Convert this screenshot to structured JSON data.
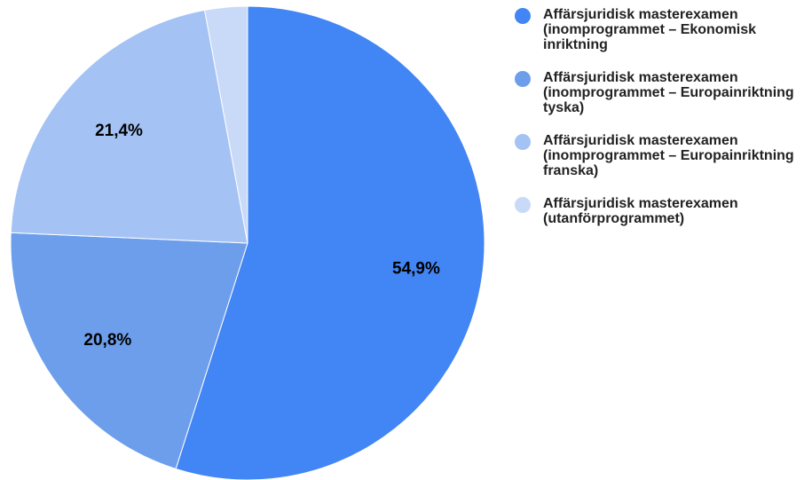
{
  "chart_data": {
    "type": "pie",
    "categories": [
      "Affärsjuridisk masterexamen (inomprogrammet – Ekonomisk inriktning",
      "Affärsjuridisk masterexamen (inomprogrammet – Europainriktning tyska)",
      "Affärsjuridisk masterexamen (inomprogrammet – Europainriktning franska)",
      "Affärsjuridisk masterexamen (utanförprogrammet)"
    ],
    "values": [
      54.9,
      20.8,
      21.4,
      2.9
    ],
    "value_labels": [
      "54,9%",
      "20,8%",
      "21,4%",
      null
    ],
    "colors": [
      "#4285f4",
      "#6d9eeb",
      "#a4c2f4",
      "#c9daf8"
    ],
    "legend": "right"
  }
}
